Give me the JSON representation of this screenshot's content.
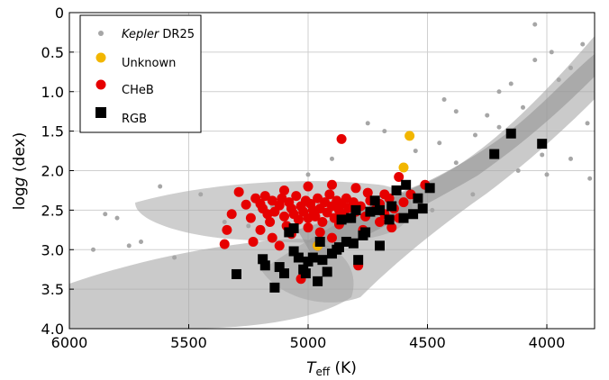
{
  "chart_data": {
    "type": "scatter",
    "title": "",
    "xlabel": {
      "main": "T",
      "sub": "eff",
      "unit": " (K)"
    },
    "ylabel": {
      "main": "log",
      "italic": "g",
      "unit": " (dex)"
    },
    "xlim": [
      6000,
      3800
    ],
    "ylim": [
      4.0,
      0
    ],
    "x_reversed": true,
    "y_reversed": true,
    "grid": true,
    "legend_position": "top-left",
    "x_ticks": [
      6000,
      5500,
      5000,
      4500,
      4000
    ],
    "x_tick_labels": [
      "6000",
      "5500",
      "5000",
      "4500",
      "4000"
    ],
    "y_ticks": [
      0,
      0.5,
      1.0,
      1.5,
      2.0,
      2.5,
      3.0,
      3.5,
      4.0
    ],
    "y_tick_labels": [
      "0",
      "0.5",
      "1.0",
      "1.5",
      "2.0",
      "2.5",
      "3.0",
      "3.5",
      "4.0"
    ],
    "series": [
      {
        "name_italic": "Kepler",
        "name_rest": " DR25",
        "marker": "small-circle",
        "color": "#a6a6a6",
        "background_cloud": true,
        "points": [
          [
            5900,
            3.0
          ],
          [
            5850,
            2.55
          ],
          [
            5800,
            2.6
          ],
          [
            5750,
            2.95
          ],
          [
            5700,
            2.9
          ],
          [
            5620,
            2.2
          ],
          [
            5350,
            2.65
          ],
          [
            5250,
            2.7
          ],
          [
            5150,
            2.45
          ],
          [
            5450,
            2.3
          ],
          [
            5560,
            3.1
          ],
          [
            4600,
            1.95
          ],
          [
            4550,
            1.75
          ],
          [
            4450,
            1.65
          ],
          [
            4380,
            1.9
          ],
          [
            4300,
            1.55
          ],
          [
            4250,
            1.3
          ],
          [
            4200,
            1.0
          ],
          [
            4150,
            0.9
          ],
          [
            4100,
            1.2
          ],
          [
            4050,
            0.6
          ],
          [
            3980,
            0.5
          ],
          [
            3950,
            0.85
          ],
          [
            3900,
            0.7
          ],
          [
            3850,
            0.4
          ],
          [
            3830,
            1.4
          ],
          [
            3820,
            2.1
          ],
          [
            4000,
            2.05
          ],
          [
            4120,
            2.0
          ],
          [
            4050,
            0.15
          ],
          [
            4380,
            1.25
          ],
          [
            4680,
            1.5
          ],
          [
            4750,
            1.4
          ],
          [
            4900,
            1.85
          ],
          [
            5000,
            2.05
          ],
          [
            4200,
            1.45
          ],
          [
            4310,
            2.3
          ],
          [
            4480,
            2.5
          ],
          [
            4430,
            1.1
          ],
          [
            4020,
            1.8
          ],
          [
            3900,
            1.85
          ]
        ]
      },
      {
        "name": "Unknown",
        "marker": "circle",
        "color": "#f2b600",
        "points": [
          [
            4575,
            1.56
          ],
          [
            4600,
            1.96
          ],
          [
            4960,
            2.95
          ]
        ]
      },
      {
        "name": "CHeB",
        "marker": "circle",
        "color": "#e60000",
        "points": [
          [
            4860,
            1.6
          ],
          [
            4790,
            3.2
          ],
          [
            4510,
            2.18
          ],
          [
            4620,
            2.08
          ],
          [
            4570,
            2.3
          ],
          [
            5340,
            2.75
          ],
          [
            5350,
            2.93
          ],
          [
            5320,
            2.55
          ],
          [
            5290,
            2.27
          ],
          [
            5260,
            2.43
          ],
          [
            5240,
            2.6
          ],
          [
            5220,
            2.35
          ],
          [
            5200,
            2.42
          ],
          [
            5190,
            2.48
          ],
          [
            5180,
            2.32
          ],
          [
            5170,
            2.55
          ],
          [
            5160,
            2.65
          ],
          [
            5150,
            2.38
          ],
          [
            5140,
            2.52
          ],
          [
            5120,
            2.44
          ],
          [
            5110,
            2.35
          ],
          [
            5100,
            2.58
          ],
          [
            5090,
            2.7
          ],
          [
            5080,
            2.4
          ],
          [
            5070,
            2.48
          ],
          [
            5060,
            2.55
          ],
          [
            5050,
            2.32
          ],
          [
            5040,
            2.62
          ],
          [
            5030,
            2.45
          ],
          [
            5020,
            2.52
          ],
          [
            5010,
            2.38
          ],
          [
            5000,
            2.6
          ],
          [
            4990,
            2.42
          ],
          [
            4980,
            2.5
          ],
          [
            4970,
            2.58
          ],
          [
            4960,
            2.35
          ],
          [
            4950,
            2.48
          ],
          [
            4940,
            2.65
          ],
          [
            4930,
            2.4
          ],
          [
            4920,
            2.53
          ],
          [
            4910,
            2.3
          ],
          [
            4900,
            2.45
          ],
          [
            4890,
            2.6
          ],
          [
            4880,
            2.38
          ],
          [
            4870,
            2.5
          ],
          [
            4860,
            2.42
          ],
          [
            4850,
            2.55
          ],
          [
            4840,
            2.35
          ],
          [
            4830,
            2.47
          ],
          [
            4820,
            2.6
          ],
          [
            4810,
            2.4
          ],
          [
            4800,
            2.52
          ],
          [
            4780,
            2.45
          ],
          [
            4760,
            2.58
          ],
          [
            4740,
            2.38
          ],
          [
            4720,
            2.5
          ],
          [
            4700,
            2.42
          ],
          [
            4680,
            2.55
          ],
          [
            4660,
            2.35
          ],
          [
            4640,
            2.48
          ],
          [
            4620,
            2.6
          ],
          [
            4600,
            2.4
          ],
          [
            5200,
            2.75
          ],
          [
            5150,
            2.85
          ],
          [
            5070,
            2.8
          ],
          [
            5000,
            2.72
          ],
          [
            4950,
            2.78
          ],
          [
            4900,
            2.85
          ],
          [
            4870,
            2.68
          ],
          [
            4770,
            2.75
          ],
          [
            4700,
            2.65
          ],
          [
            4650,
            2.72
          ],
          [
            5230,
            2.9
          ],
          [
            5120,
            2.95
          ],
          [
            5030,
            3.37
          ],
          [
            5100,
            2.25
          ],
          [
            5000,
            2.2
          ],
          [
            4900,
            2.18
          ],
          [
            4800,
            2.22
          ],
          [
            4750,
            2.28
          ],
          [
            4680,
            2.3
          ],
          [
            4960,
            2.95
          ]
        ]
      },
      {
        "name": "RGB",
        "marker": "square",
        "color": "#000000",
        "points": [
          [
            4150,
            1.53
          ],
          [
            4020,
            1.66
          ],
          [
            4220,
            1.79
          ],
          [
            4490,
            2.22
          ],
          [
            4540,
            2.35
          ],
          [
            4590,
            2.18
          ],
          [
            4630,
            2.25
          ],
          [
            4520,
            2.48
          ],
          [
            4560,
            2.55
          ],
          [
            4600,
            2.6
          ],
          [
            4650,
            2.45
          ],
          [
            4660,
            2.62
          ],
          [
            4700,
            2.5
          ],
          [
            4720,
            2.38
          ],
          [
            4740,
            2.52
          ],
          [
            4760,
            2.78
          ],
          [
            4700,
            2.95
          ],
          [
            4800,
            2.5
          ],
          [
            4820,
            2.6
          ],
          [
            4840,
            2.9
          ],
          [
            4860,
            2.62
          ],
          [
            4880,
            3.0
          ],
          [
            4900,
            3.05
          ],
          [
            4920,
            3.28
          ],
          [
            4940,
            3.13
          ],
          [
            4960,
            3.4
          ],
          [
            4980,
            3.1
          ],
          [
            5000,
            3.15
          ],
          [
            5020,
            3.25
          ],
          [
            5040,
            3.1
          ],
          [
            5060,
            3.02
          ],
          [
            5080,
            2.78
          ],
          [
            5100,
            3.3
          ],
          [
            5120,
            3.22
          ],
          [
            5140,
            3.48
          ],
          [
            5180,
            3.2
          ],
          [
            5190,
            3.12
          ],
          [
            5300,
            3.31
          ],
          [
            5060,
            2.73
          ],
          [
            5010,
            3.3
          ],
          [
            4810,
            2.92
          ],
          [
            4770,
            2.82
          ],
          [
            4790,
            3.13
          ],
          [
            4870,
            2.97
          ],
          [
            4950,
            2.9
          ]
        ]
      }
    ]
  }
}
